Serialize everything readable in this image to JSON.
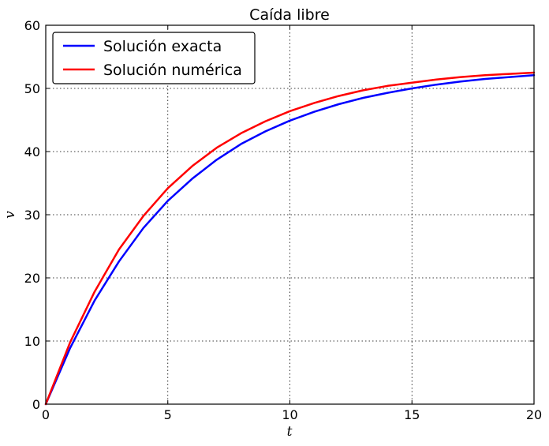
{
  "chart_data": {
    "type": "line",
    "title": "Caída libre",
    "xlabel": "t",
    "ylabel": "v",
    "xlim": [
      0,
      20
    ],
    "ylim": [
      0,
      60
    ],
    "xticks": [
      0,
      5,
      10,
      15,
      20
    ],
    "yticks": [
      0,
      10,
      20,
      30,
      40,
      50,
      60
    ],
    "grid": true,
    "legend_position": "top-left",
    "series": [
      {
        "name": "Solución exacta",
        "color": "#0000ff",
        "x": [
          0,
          1,
          2,
          3,
          4,
          5,
          6,
          7,
          8,
          9,
          10,
          11,
          12,
          13,
          14,
          15,
          16,
          17,
          18,
          19,
          20
        ],
        "y": [
          0,
          8.9,
          16.4,
          22.6,
          27.9,
          32.2,
          35.7,
          38.7,
          41.2,
          43.2,
          44.9,
          46.3,
          47.5,
          48.5,
          49.3,
          50.0,
          50.6,
          51.1,
          51.5,
          51.8,
          52.1
        ]
      },
      {
        "name": "Solución numérica",
        "color": "#ff0000",
        "x": [
          0,
          1,
          2,
          3,
          4,
          5,
          6,
          7,
          8,
          9,
          10,
          11,
          12,
          13,
          14,
          15,
          16,
          17,
          18,
          19,
          20
        ],
        "y": [
          0,
          9.8,
          17.8,
          24.5,
          29.8,
          34.2,
          37.7,
          40.6,
          42.9,
          44.8,
          46.4,
          47.7,
          48.8,
          49.7,
          50.4,
          50.9,
          51.4,
          51.8,
          52.1,
          52.3,
          52.5
        ]
      }
    ]
  }
}
